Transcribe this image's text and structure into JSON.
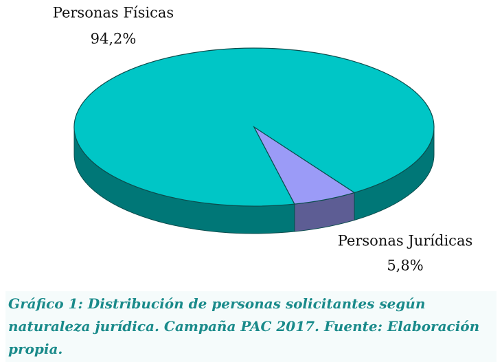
{
  "chart_data": {
    "type": "pie",
    "categories": [
      "Personas Físicas",
      "Personas Jurídicas"
    ],
    "values": [
      94.2,
      5.8
    ],
    "value_labels": [
      "94,2%",
      "5,8%"
    ],
    "colors": [
      "#00c6c6",
      "#9b9bf7"
    ],
    "caption": "Gráfico 1: Distribución de personas solicitantes según naturaleza jurídica. Campaña PAC 2017.  Fuente: Elaboración propia."
  }
}
